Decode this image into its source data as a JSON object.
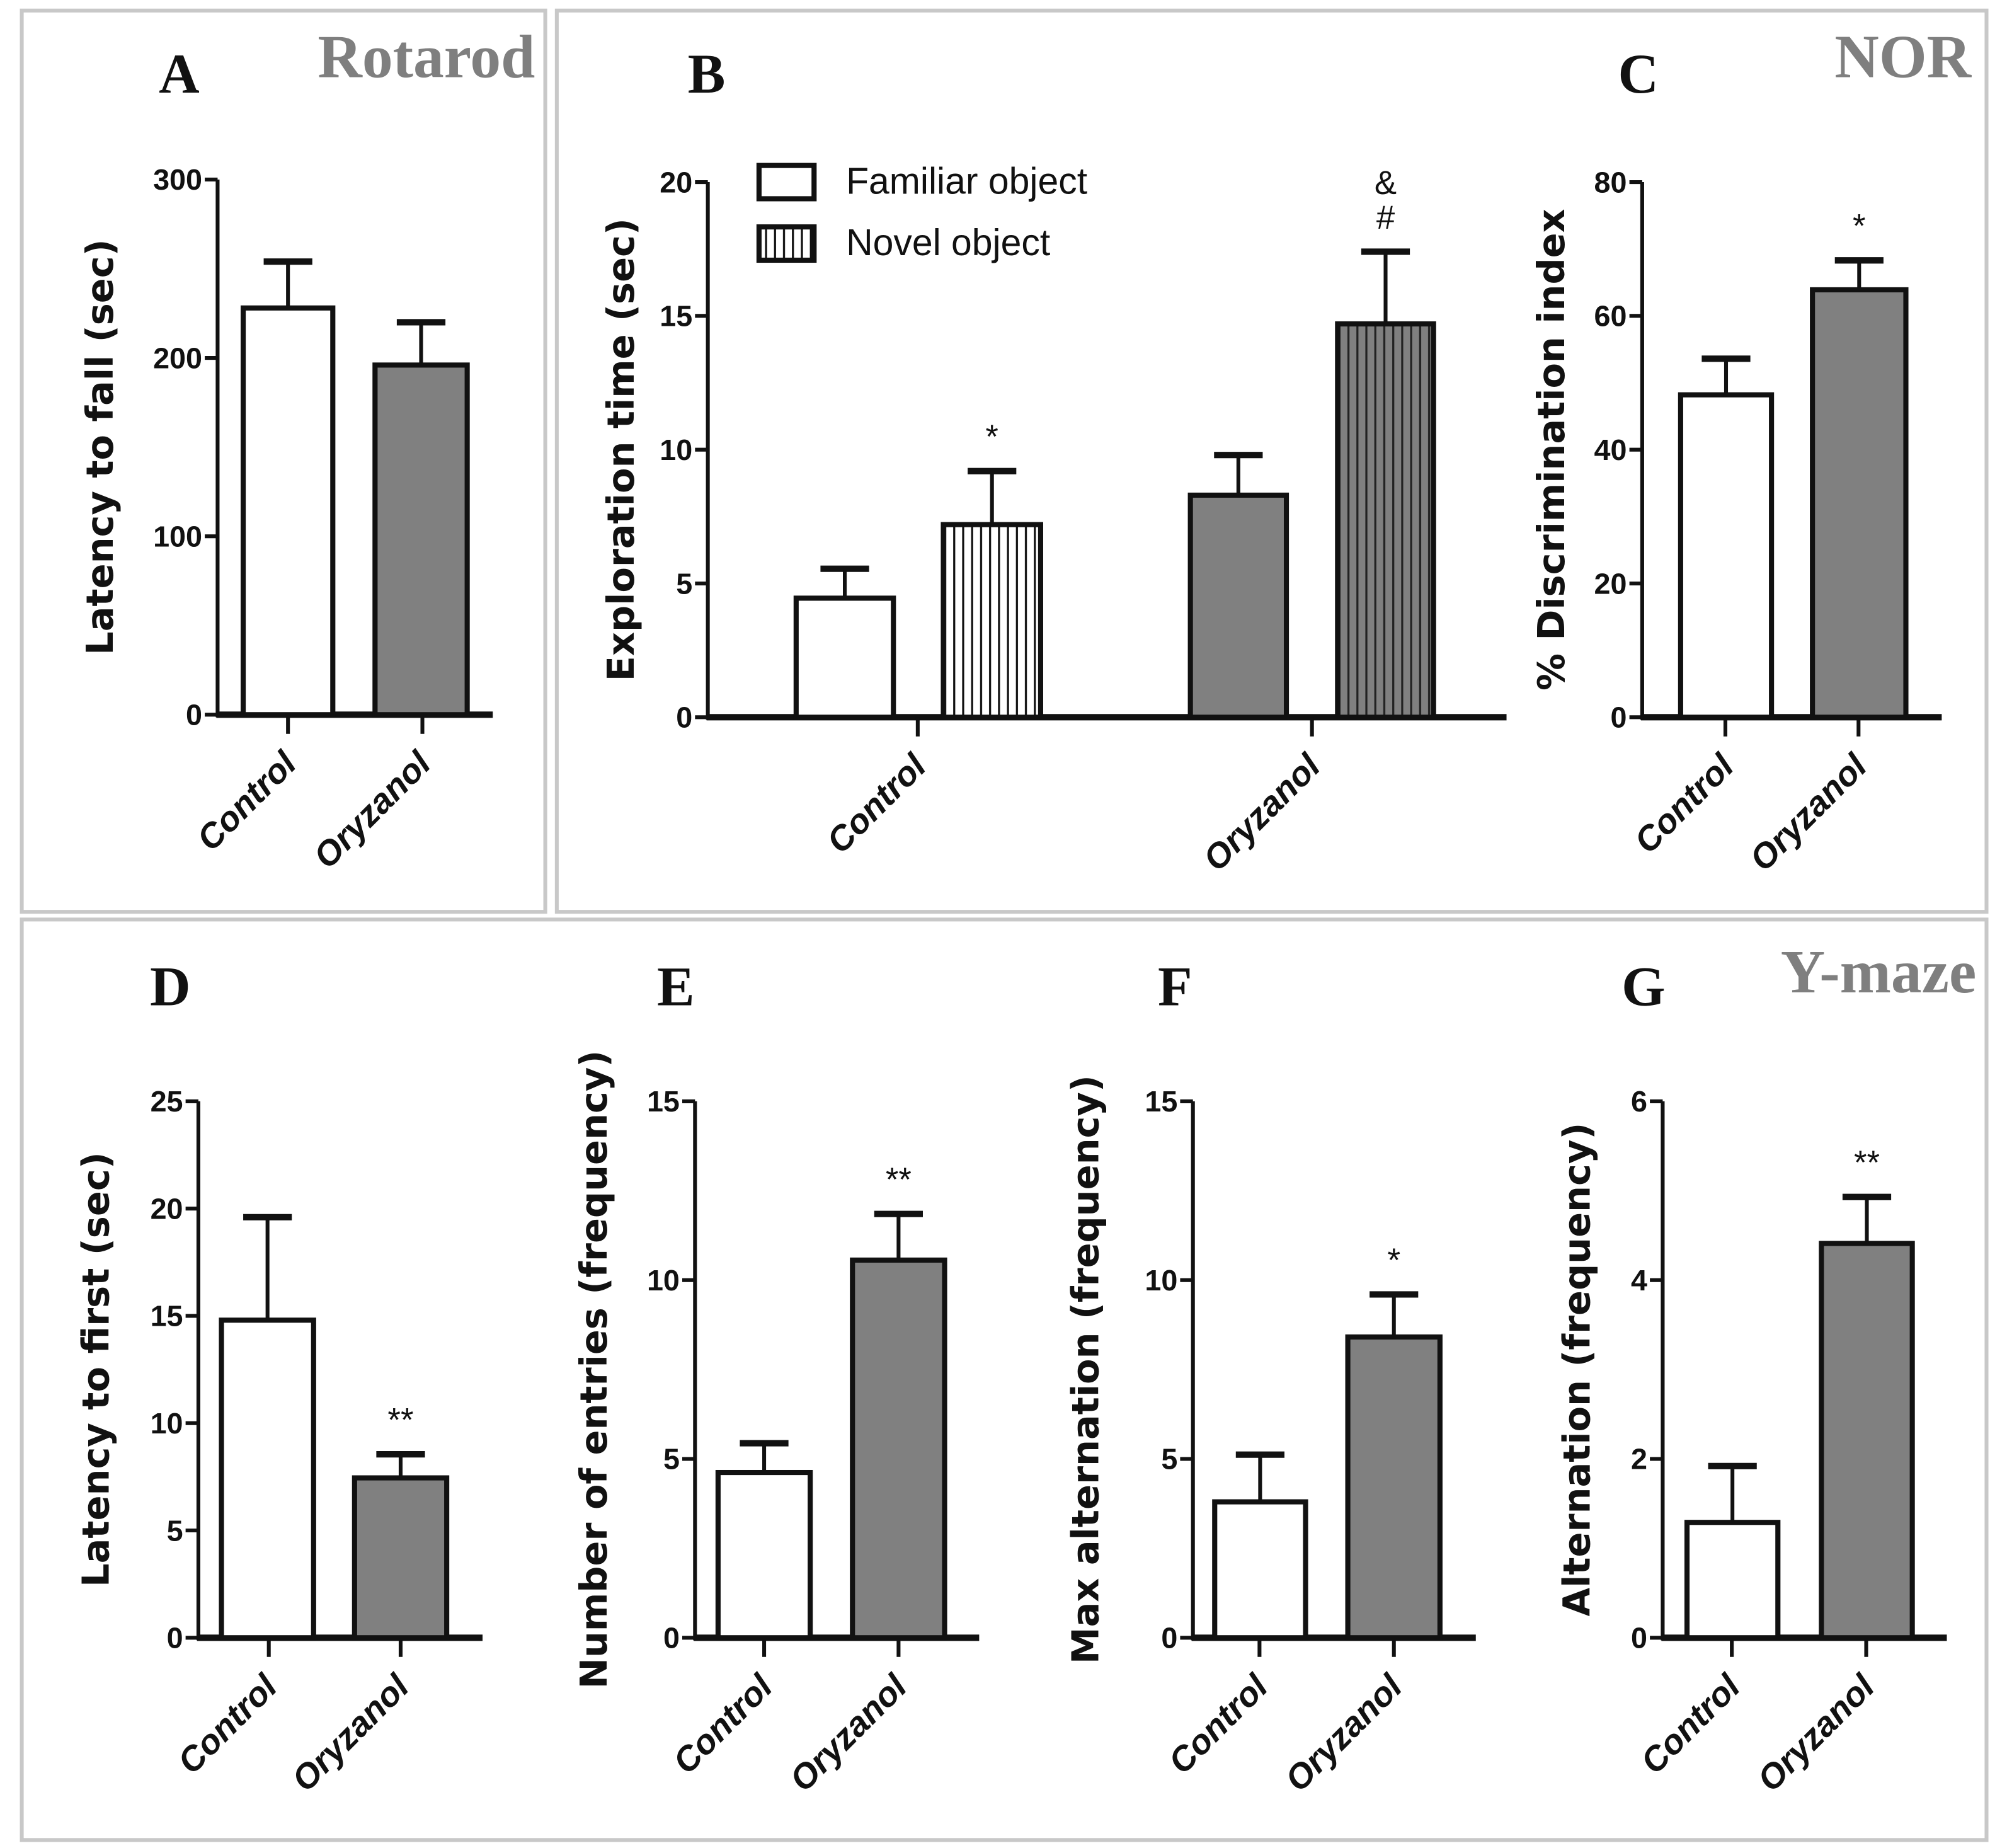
{
  "colors": {
    "control": "#ffffff",
    "oryzanol": "#808080",
    "stroke": "#111111",
    "frame": "#c8c8c8",
    "title": "#7f7f7f"
  },
  "sections": {
    "rotarod": "Rotarod",
    "nor": "NOR",
    "ymaze": "Y-maze"
  },
  "chart_data": [
    {
      "id": "A",
      "type": "bar",
      "letter": "A",
      "ylabel": "Latency to fall (sec)",
      "ylim": [
        0,
        300
      ],
      "yticks": [
        0,
        100,
        200,
        300
      ],
      "categories": [
        "Control",
        "Oryzanol"
      ],
      "values": [
        228,
        196
      ],
      "errors": [
        26,
        24
      ],
      "significance": [
        "",
        ""
      ]
    },
    {
      "id": "B",
      "type": "bar",
      "letter": "B",
      "ylabel": "Exploration time (sec)",
      "ylim": [
        0,
        20
      ],
      "yticks": [
        0,
        5,
        10,
        15,
        20
      ],
      "categories": [
        "Control",
        "Oryzanol"
      ],
      "legend": {
        "position": "top-left",
        "entries": [
          "Familiar object",
          "Novel object"
        ]
      },
      "series": [
        {
          "name": "Familiar object",
          "values": [
            4.45,
            8.3
          ],
          "errors": [
            1.1,
            1.5
          ],
          "significance": [
            "",
            ""
          ]
        },
        {
          "name": "Novel object",
          "values": [
            7.2,
            14.7
          ],
          "errors": [
            2.0,
            2.7
          ],
          "significance": [
            "*",
            "#"
          ],
          "significance2": [
            "",
            "&"
          ]
        }
      ]
    },
    {
      "id": "C",
      "type": "bar",
      "letter": "C",
      "ylabel": "% Discrimination index",
      "ylim": [
        0,
        80
      ],
      "yticks": [
        0,
        20,
        40,
        60,
        80
      ],
      "categories": [
        "Control",
        "Oryzanol"
      ],
      "values": [
        48.2,
        63.9
      ],
      "errors": [
        5.4,
        4.4
      ],
      "significance": [
        "",
        "*"
      ]
    },
    {
      "id": "D",
      "type": "bar",
      "letter": "D",
      "ylabel": "Latency to first (sec)",
      "ylim": [
        0,
        25
      ],
      "yticks": [
        0,
        5,
        10,
        15,
        20,
        25
      ],
      "categories": [
        "Control",
        "Oryzanol"
      ],
      "values": [
        14.8,
        7.45
      ],
      "errors": [
        4.8,
        1.1
      ],
      "significance": [
        "",
        "**"
      ]
    },
    {
      "id": "E",
      "type": "bar",
      "letter": "E",
      "ylabel": "Number of entries (frequency)",
      "ylim": [
        0,
        15
      ],
      "yticks": [
        0,
        5,
        10,
        15
      ],
      "categories": [
        "Control",
        "Oryzanol"
      ],
      "values": [
        4.62,
        10.56
      ],
      "errors": [
        0.82,
        1.29
      ],
      "significance": [
        "",
        "**"
      ]
    },
    {
      "id": "F",
      "type": "bar",
      "letter": "F",
      "ylabel": "Max alternation (frequency)",
      "ylim": [
        0,
        15
      ],
      "yticks": [
        0,
        5,
        10,
        15
      ],
      "categories": [
        "Control",
        "Oryzanol"
      ],
      "values": [
        3.8,
        8.41
      ],
      "errors": [
        1.32,
        1.19
      ],
      "significance": [
        "",
        "*"
      ]
    },
    {
      "id": "G",
      "type": "bar",
      "letter": "G",
      "ylabel": "Alternation (frequency)",
      "ylim": [
        0,
        6
      ],
      "yticks": [
        0,
        2,
        4,
        6
      ],
      "categories": [
        "Control",
        "Oryzanol"
      ],
      "values": [
        1.29,
        4.41
      ],
      "errors": [
        0.63,
        0.52
      ],
      "significance": [
        "",
        "**"
      ]
    }
  ]
}
